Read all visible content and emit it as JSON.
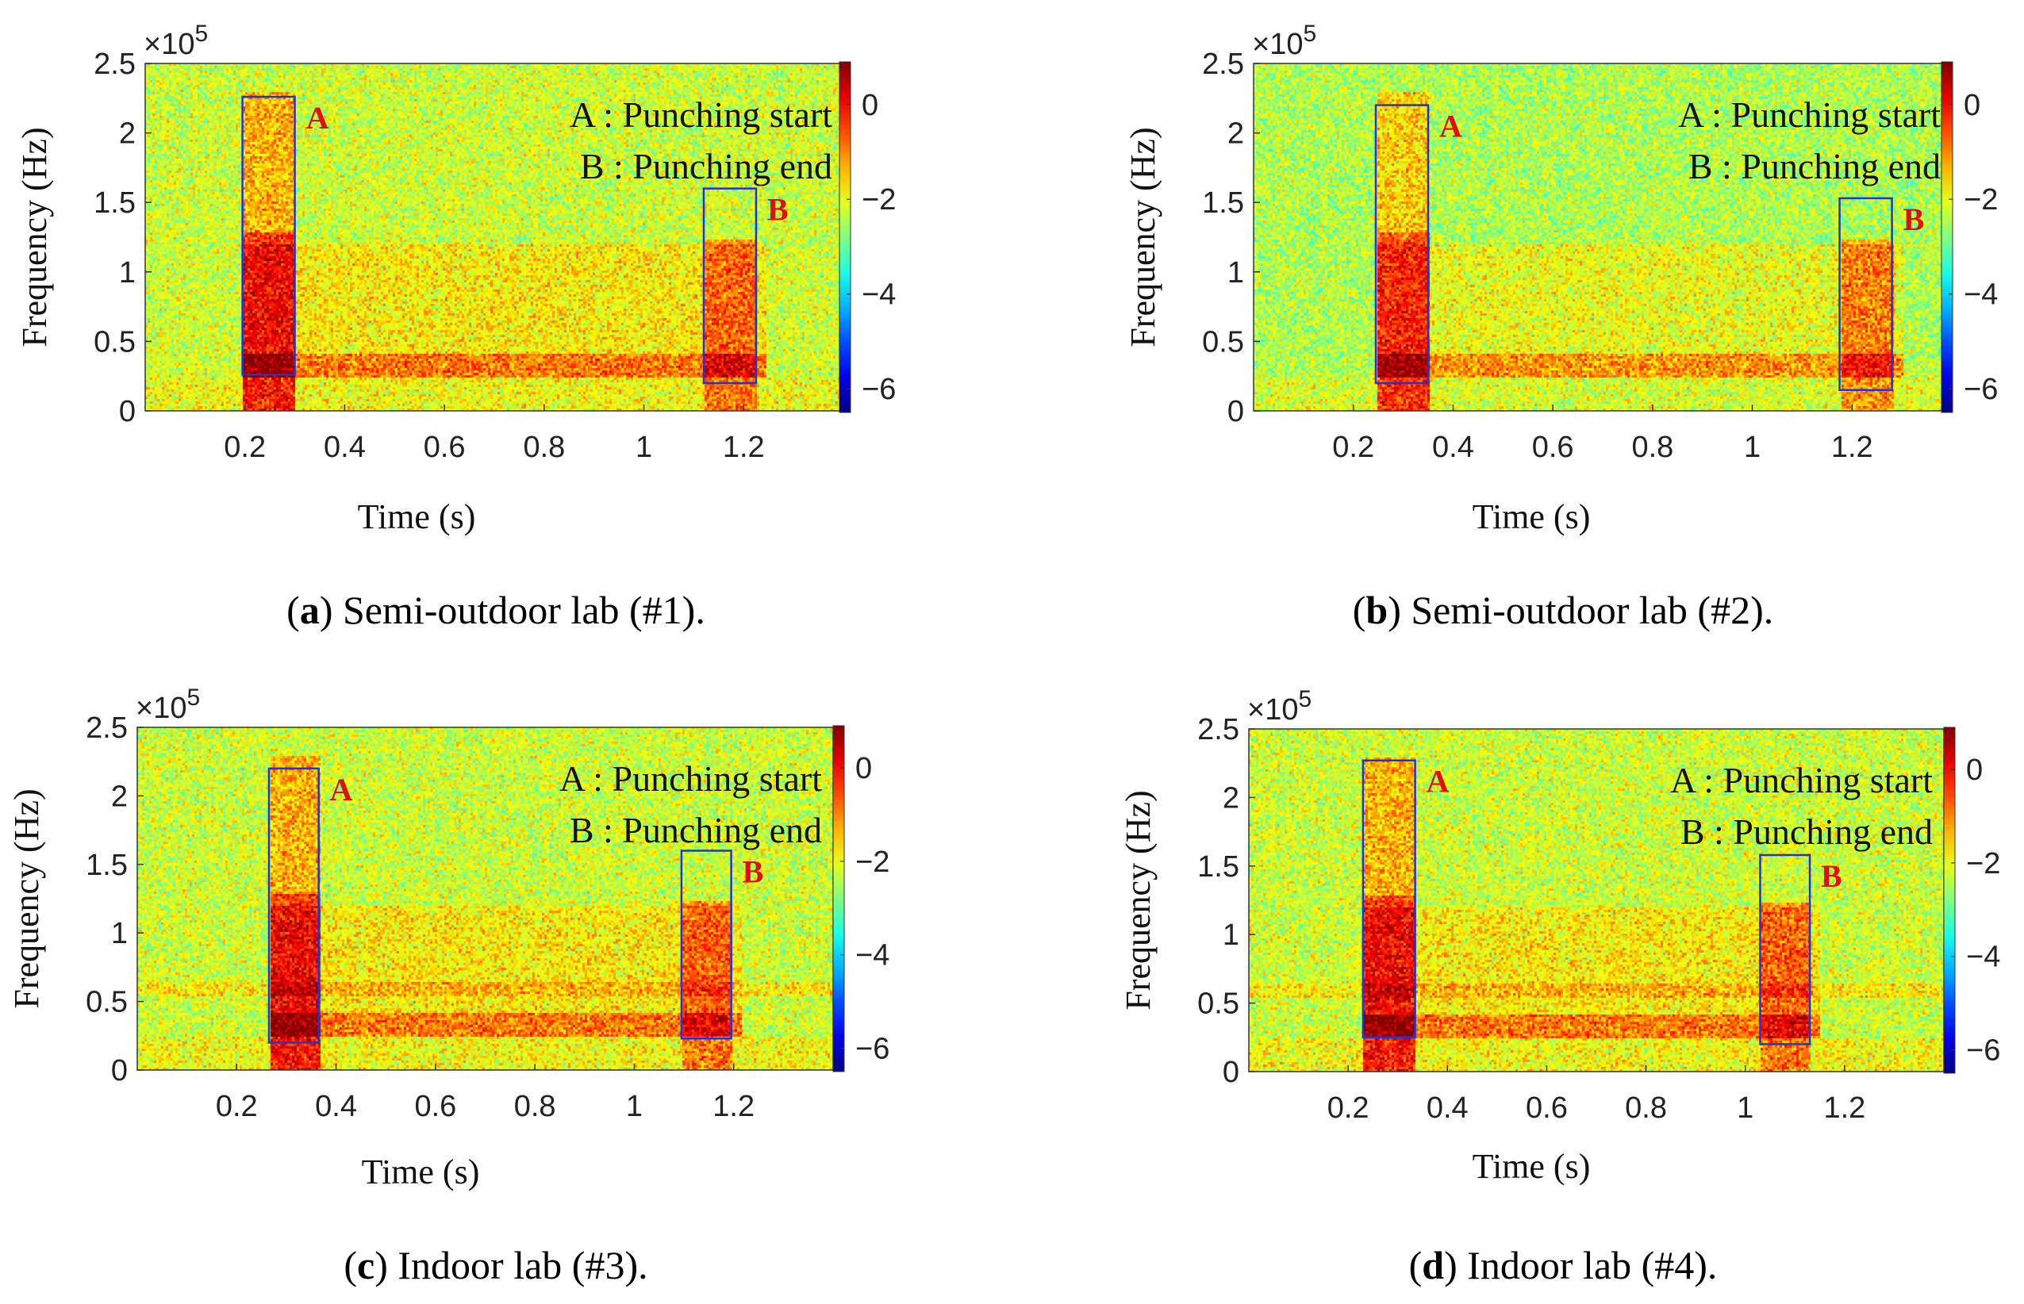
{
  "figure": {
    "panels": [
      {
        "letter": "a",
        "caption": "Semi-outdoor lab (#1).",
        "open": "(",
        "close": ")"
      },
      {
        "letter": "b",
        "caption": "Semi-outdoor lab (#2).",
        "open": "(",
        "close": ")"
      },
      {
        "letter": "c",
        "caption": "Indoor lab (#3).",
        "open": "(",
        "close": ")"
      },
      {
        "letter": "d",
        "caption": "Indoor lab (#4).",
        "open": "(",
        "close": ")"
      }
    ]
  },
  "chart_data": [
    {
      "type": "heatmap",
      "title": "",
      "xlabel": "Time (s)",
      "ylabel": "Frequency (Hz)",
      "y_multiplier_label": "×10^5",
      "x_ticks": [
        "0.2",
        "0.4",
        "0.6",
        "0.8",
        "1",
        "1.2"
      ],
      "y_ticks": [
        "0",
        "0.5",
        "1",
        "1.5",
        "2",
        "2.5"
      ],
      "xlim": [
        0,
        1.4
      ],
      "ylim": [
        0,
        2.5
      ],
      "colorbar": {
        "ticks": [
          "0",
          "−2",
          "−4",
          "−6"
        ],
        "range": [
          -6.5,
          0.9
        ]
      },
      "legend": [
        "A : Punching start",
        "B : Punching end"
      ],
      "regions": [
        {
          "label": "A",
          "t_start": 0.195,
          "t_end": 0.3,
          "f_min": 0.26,
          "f_max": 2.26
        },
        {
          "label": "B",
          "t_start": 1.12,
          "t_end": 1.225,
          "f_min": 0.2,
          "f_max": 1.6
        }
      ]
    },
    {
      "type": "heatmap",
      "title": "",
      "xlabel": "Time (s)",
      "ylabel": "Frequency (Hz)",
      "y_multiplier_label": "×10^5",
      "x_ticks": [
        "0.2",
        "0.4",
        "0.6",
        "0.8",
        "1",
        "1.2"
      ],
      "y_ticks": [
        "0",
        "0.5",
        "1",
        "1.5",
        "2",
        "2.5"
      ],
      "xlim": [
        0,
        1.4
      ],
      "ylim": [
        0,
        2.5
      ],
      "colorbar": {
        "ticks": [
          "0",
          "−2",
          "−4",
          "−6"
        ],
        "range": [
          -6.5,
          0.9
        ]
      },
      "legend": [
        "A : Punching start",
        "B : Punching end"
      ],
      "regions": [
        {
          "label": "A",
          "t_start": 0.245,
          "t_end": 0.35,
          "f_min": 0.2,
          "f_max": 2.2
        },
        {
          "label": "B",
          "t_start": 1.175,
          "t_end": 1.28,
          "f_min": 0.15,
          "f_max": 1.53
        }
      ]
    },
    {
      "type": "heatmap",
      "title": "",
      "xlabel": "Time (s)",
      "ylabel": "Frequency (Hz)",
      "y_multiplier_label": "×10^5",
      "x_ticks": [
        "0.2",
        "0.4",
        "0.6",
        "0.8",
        "1",
        "1.2"
      ],
      "y_ticks": [
        "0",
        "0.5",
        "1",
        "1.5",
        "2",
        "2.5"
      ],
      "xlim": [
        0,
        1.4
      ],
      "ylim": [
        0,
        2.5
      ],
      "colorbar": {
        "ticks": [
          "0",
          "−2",
          "−4",
          "−6"
        ],
        "range": [
          -6.5,
          0.9
        ]
      },
      "legend": [
        "A : Punching start",
        "B : Punching end"
      ],
      "regions": [
        {
          "label": "A",
          "t_start": 0.265,
          "t_end": 0.365,
          "f_min": 0.2,
          "f_max": 2.2
        },
        {
          "label": "B",
          "t_start": 1.095,
          "t_end": 1.195,
          "f_min": 0.23,
          "f_max": 1.6
        }
      ]
    },
    {
      "type": "heatmap",
      "title": "",
      "xlabel": "Time (s)",
      "ylabel": "Frequency (Hz)",
      "y_multiplier_label": "×10^5",
      "x_ticks": [
        "0.2",
        "0.4",
        "0.6",
        "0.8",
        "1",
        "1.2"
      ],
      "y_ticks": [
        "0",
        "0.5",
        "1",
        "1.5",
        "2",
        "2.5"
      ],
      "xlim": [
        0,
        1.4
      ],
      "ylim": [
        0,
        2.5
      ],
      "colorbar": {
        "ticks": [
          "0",
          "−2",
          "−4",
          "−6"
        ],
        "range": [
          -6.5,
          0.9
        ]
      },
      "legend": [
        "A : Punching start",
        "B : Punching end"
      ],
      "regions": [
        {
          "label": "A",
          "t_start": 0.23,
          "t_end": 0.335,
          "f_min": 0.25,
          "f_max": 2.27
        },
        {
          "label": "B",
          "t_start": 1.03,
          "t_end": 1.13,
          "f_min": 0.2,
          "f_max": 1.58
        }
      ]
    }
  ]
}
